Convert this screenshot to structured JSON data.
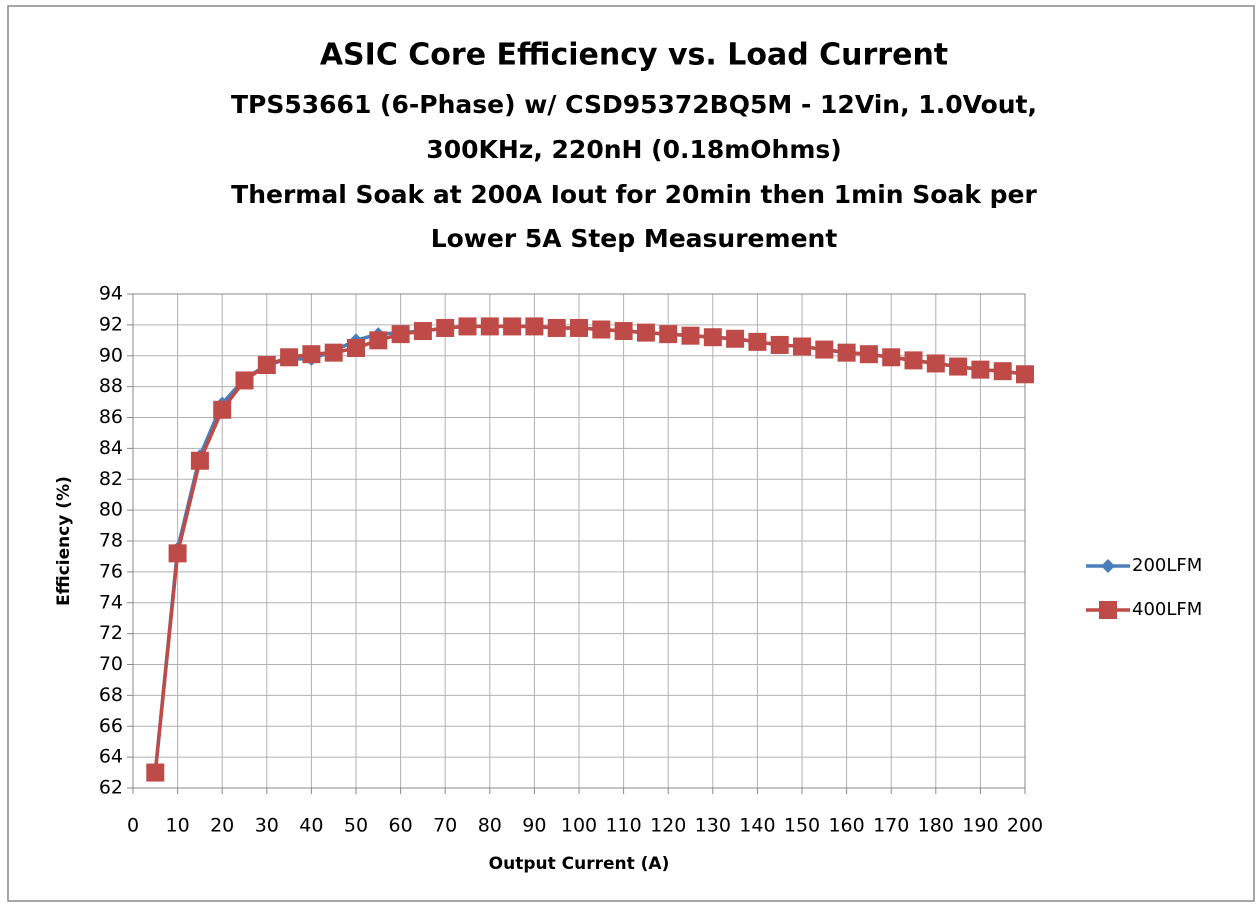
{
  "chart_data": {
    "type": "line",
    "title": "ASIC Core Efficiency vs. Load Current",
    "subtitle": [
      "TPS53661 (6-Phase) w/ CSD95372BQ5M - 12Vin, 1.0Vout,",
      "300KHz, 220nH (0.18mOhms)",
      "Thermal Soak at 200A Iout for 20min then 1min Soak per",
      "Lower 5A Step Measurement"
    ],
    "x_label": "Output Current (A)",
    "y_label": "Efficiency (%)",
    "x": [
      5,
      10,
      15,
      20,
      25,
      30,
      35,
      40,
      45,
      50,
      55,
      60,
      65,
      70,
      75,
      80,
      85,
      90,
      95,
      100,
      105,
      110,
      115,
      120,
      125,
      130,
      135,
      140,
      145,
      150,
      155,
      160,
      165,
      170,
      175,
      180,
      185,
      190,
      195,
      200
    ],
    "series": [
      {
        "name": "200LFM",
        "color": "#4a7ebb",
        "marker": "diamond",
        "values": [
          63.0,
          77.5,
          83.5,
          86.9,
          88.5,
          89.4,
          89.8,
          89.8,
          90.3,
          91.0,
          91.4,
          91.5,
          91.6,
          91.8,
          91.9,
          91.9,
          91.9,
          91.9,
          91.8,
          91.8,
          91.7,
          91.6,
          91.5,
          91.4,
          91.3,
          91.2,
          91.1,
          90.9,
          90.7,
          90.6,
          90.4,
          90.2,
          90.1,
          89.9,
          89.7,
          89.5,
          89.3,
          89.1,
          89.0,
          88.8
        ]
      },
      {
        "name": "400LFM",
        "color": "#be4b48",
        "marker": "square",
        "values": [
          63.0,
          77.2,
          83.2,
          86.5,
          88.4,
          89.4,
          89.9,
          90.1,
          90.2,
          90.5,
          91.0,
          91.4,
          91.6,
          91.8,
          91.9,
          91.9,
          91.9,
          91.9,
          91.8,
          91.8,
          91.7,
          91.6,
          91.5,
          91.4,
          91.3,
          91.2,
          91.1,
          90.9,
          90.7,
          90.6,
          90.4,
          90.2,
          90.1,
          89.9,
          89.7,
          89.5,
          89.3,
          89.1,
          89.0,
          88.8
        ]
      }
    ],
    "xlim": [
      0,
      200
    ],
    "xticks": [
      0,
      10,
      20,
      30,
      40,
      50,
      60,
      70,
      80,
      90,
      100,
      110,
      120,
      130,
      140,
      150,
      160,
      170,
      180,
      190,
      200
    ],
    "ylim": [
      62,
      94
    ],
    "yticks": [
      62,
      64,
      66,
      68,
      70,
      72,
      74,
      76,
      78,
      80,
      82,
      84,
      86,
      88,
      90,
      92,
      94
    ],
    "grid": true,
    "legend": "right"
  }
}
